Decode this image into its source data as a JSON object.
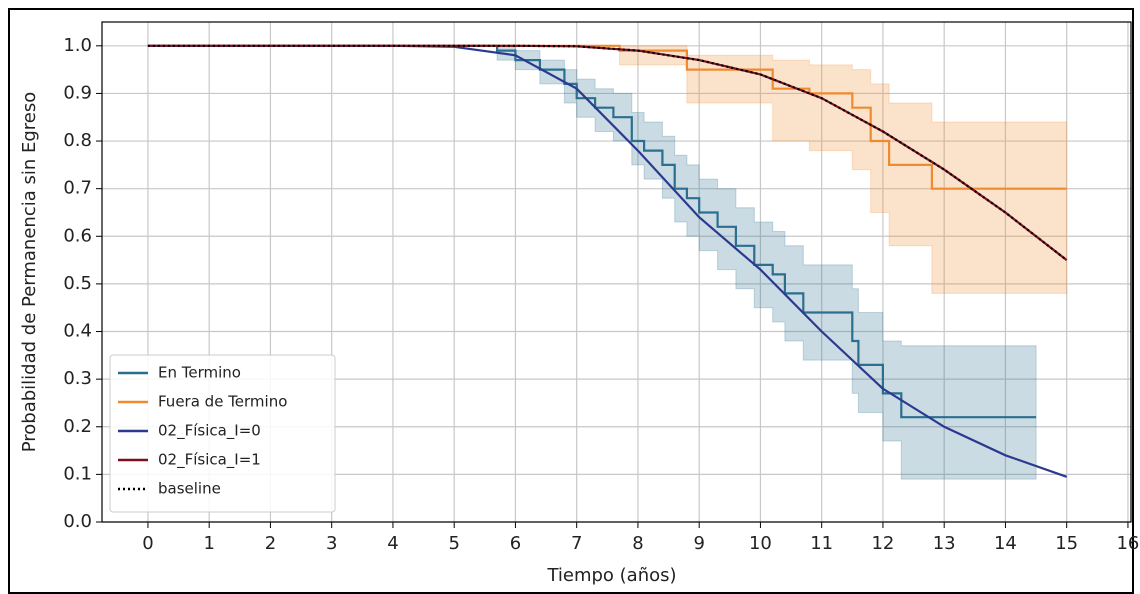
{
  "chart_data": {
    "type": "survival",
    "xlabel": "Tiempo (años)",
    "ylabel": "Probabilidad de Permanencia sin Egreso",
    "xlim": [
      -0.75,
      16.05
    ],
    "ylim": [
      0,
      1.05
    ],
    "xticks": [
      0,
      1,
      2,
      3,
      4,
      5,
      6,
      7,
      8,
      9,
      10,
      11,
      12,
      13,
      14,
      15,
      16
    ],
    "yticks": [
      {
        "value": 0,
        "label": "0.0"
      },
      0.1,
      0.2,
      0.3,
      0.4,
      0.5,
      0.6,
      0.7,
      0.8,
      0.9,
      {
        "value": 1,
        "label": "1.0"
      }
    ],
    "grid": true,
    "legend": "lower left",
    "series": [
      {
        "name": "En Termino",
        "color": "#2a6f8f",
        "drawstyle": "steps-post",
        "x": [
          0,
          5.7,
          6.0,
          6.4,
          6.8,
          7.0,
          7.3,
          7.6,
          7.9,
          8.1,
          8.4,
          8.6,
          8.8,
          9.0,
          9.3,
          9.6,
          9.9,
          10.2,
          10.4,
          10.7,
          11.5,
          11.6,
          12.0,
          12.3,
          14.5
        ],
        "values": [
          1,
          0.99,
          0.97,
          0.95,
          0.92,
          0.89,
          0.87,
          0.85,
          0.8,
          0.78,
          0.75,
          0.7,
          0.68,
          0.65,
          0.62,
          0.58,
          0.54,
          0.52,
          0.48,
          0.44,
          0.38,
          0.33,
          0.27,
          0.22,
          0.22
        ],
        "ci_lower": [
          1,
          0.97,
          0.95,
          0.92,
          0.88,
          0.85,
          0.82,
          0.8,
          0.75,
          0.72,
          0.68,
          0.63,
          0.6,
          0.57,
          0.53,
          0.49,
          0.45,
          0.42,
          0.38,
          0.34,
          0.27,
          0.23,
          0.17,
          0.09,
          0.09
        ],
        "ci_upper": [
          1,
          1,
          0.99,
          0.97,
          0.95,
          0.93,
          0.91,
          0.9,
          0.86,
          0.84,
          0.81,
          0.77,
          0.75,
          0.72,
          0.7,
          0.66,
          0.63,
          0.61,
          0.58,
          0.54,
          0.49,
          0.44,
          0.38,
          0.37,
          0.37
        ]
      },
      {
        "name": "Fuera de Termino",
        "color": "#ef8a2f",
        "drawstyle": "steps-post",
        "x": [
          0,
          7.7,
          8.8,
          10.2,
          10.8,
          11.5,
          11.8,
          12.1,
          12.8,
          15
        ],
        "values": [
          1,
          0.99,
          0.95,
          0.91,
          0.9,
          0.87,
          0.8,
          0.75,
          0.7,
          0.7
        ],
        "ci_lower": [
          1,
          0.96,
          0.88,
          0.8,
          0.78,
          0.74,
          0.65,
          0.58,
          0.48,
          0.48
        ],
        "ci_upper": [
          1,
          1,
          0.98,
          0.97,
          0.96,
          0.95,
          0.92,
          0.88,
          0.84,
          0.84
        ]
      },
      {
        "name": "02_Física_I=0",
        "color": "#2b3a8f",
        "drawstyle": "default",
        "x": [
          0,
          1,
          2,
          3,
          4,
          5,
          6,
          7,
          8,
          9,
          10,
          11,
          12,
          13,
          14,
          15
        ],
        "values": [
          1,
          1,
          1,
          1,
          1,
          0.998,
          0.98,
          0.91,
          0.78,
          0.64,
          0.53,
          0.4,
          0.28,
          0.2,
          0.14,
          0.095
        ]
      },
      {
        "name": "02_Física_I=1",
        "color": "#7a1020",
        "drawstyle": "default",
        "x": [
          0,
          1,
          2,
          3,
          4,
          5,
          6,
          7,
          8,
          9,
          10,
          11,
          12,
          13,
          14,
          15
        ],
        "values": [
          1,
          1,
          1,
          1,
          1,
          1,
          1,
          0.999,
          0.99,
          0.97,
          0.94,
          0.89,
          0.82,
          0.74,
          0.65,
          0.55
        ]
      },
      {
        "name": "baseline",
        "color": "#000000",
        "drawstyle": "default",
        "linestyle": "dotted",
        "x": [
          0,
          1,
          2,
          3,
          4,
          5,
          6,
          7,
          8,
          9,
          10,
          11,
          12,
          13,
          14,
          15
        ],
        "values": [
          1,
          1,
          1,
          1,
          1,
          1,
          1,
          0.999,
          0.99,
          0.97,
          0.94,
          0.89,
          0.82,
          0.74,
          0.65,
          0.55
        ]
      }
    ]
  }
}
